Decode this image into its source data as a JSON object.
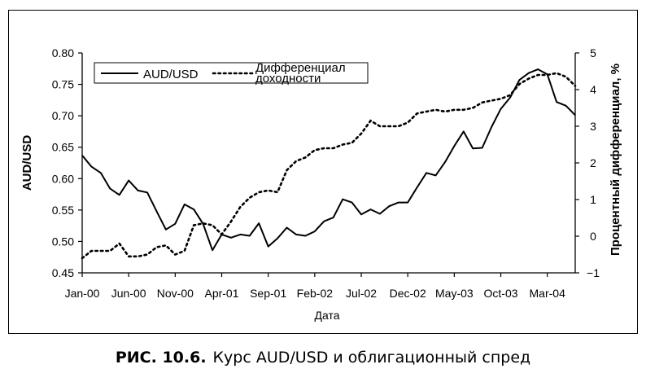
{
  "caption": {
    "number": "РИС. 10.6.",
    "text": "Курс AUD/USD и облигационный спред"
  },
  "chart_data": {
    "type": "line",
    "xlabel": "Дата",
    "ylabel_left": "AUD/USD",
    "ylabel_right": "Процентный дифференциал, %",
    "ylim_left": [
      0.45,
      0.8
    ],
    "ylim_right": [
      -1,
      5
    ],
    "yticks_left": [
      "0.45",
      "0.50",
      "0.55",
      "0.60",
      "0.65",
      "0.70",
      "0.75",
      "0.80"
    ],
    "yticks_right": [
      "−1",
      "0",
      "1",
      "2",
      "3",
      "4",
      "5"
    ],
    "x_tick_labels": [
      "Jan-00",
      "Jun-00",
      "Nov-00",
      "Apr-01",
      "Sep-01",
      "Feb-02",
      "Jul-02",
      "Dec-02",
      "May-03",
      "Oct-03",
      "Mar-04"
    ],
    "x_months": [
      "2000-01",
      "2000-02",
      "2000-03",
      "2000-04",
      "2000-05",
      "2000-06",
      "2000-07",
      "2000-08",
      "2000-09",
      "2000-10",
      "2000-11",
      "2000-12",
      "2001-01",
      "2001-02",
      "2001-03",
      "2001-04",
      "2001-05",
      "2001-06",
      "2001-07",
      "2001-08",
      "2001-09",
      "2001-10",
      "2001-11",
      "2001-12",
      "2002-01",
      "2002-02",
      "2002-03",
      "2002-04",
      "2002-05",
      "2002-06",
      "2002-07",
      "2002-08",
      "2002-09",
      "2002-10",
      "2002-11",
      "2002-12",
      "2003-01",
      "2003-02",
      "2003-03",
      "2003-04",
      "2003-05",
      "2003-06",
      "2003-07",
      "2003-08",
      "2003-09",
      "2003-10",
      "2003-11",
      "2003-12",
      "2004-01",
      "2004-02",
      "2004-03",
      "2004-04",
      "2004-05",
      "2004-06"
    ],
    "legend_position": "top-left",
    "grid": false,
    "series": [
      {
        "name": "AUD/USD",
        "axis": "left",
        "style": "solid",
        "values": [
          0.637,
          0.619,
          0.609,
          0.584,
          0.574,
          0.597,
          0.581,
          0.578,
          0.548,
          0.519,
          0.528,
          0.559,
          0.551,
          0.528,
          0.486,
          0.511,
          0.506,
          0.511,
          0.509,
          0.529,
          0.492,
          0.505,
          0.522,
          0.511,
          0.509,
          0.516,
          0.532,
          0.538,
          0.567,
          0.562,
          0.543,
          0.551,
          0.544,
          0.556,
          0.562,
          0.562,
          0.586,
          0.609,
          0.605,
          0.626,
          0.652,
          0.675,
          0.648,
          0.649,
          0.682,
          0.711,
          0.729,
          0.757,
          0.768,
          0.774,
          0.766,
          0.722,
          0.716,
          0.701
        ]
      },
      {
        "name": "Дифференциал доходности",
        "axis": "right",
        "style": "dotted",
        "values": [
          -0.6,
          -0.4,
          -0.4,
          -0.4,
          -0.2,
          -0.55,
          -0.55,
          -0.5,
          -0.3,
          -0.25,
          -0.5,
          -0.4,
          0.3,
          0.35,
          0.3,
          0.05,
          0.4,
          0.8,
          1.05,
          1.2,
          1.25,
          1.2,
          1.8,
          2.05,
          2.15,
          2.35,
          2.4,
          2.4,
          2.5,
          2.55,
          2.8,
          3.15,
          3.0,
          3.0,
          3.0,
          3.1,
          3.35,
          3.4,
          3.45,
          3.4,
          3.45,
          3.45,
          3.5,
          3.65,
          3.7,
          3.75,
          3.85,
          4.15,
          4.3,
          4.4,
          4.4,
          4.45,
          4.35,
          4.1
        ]
      }
    ]
  }
}
